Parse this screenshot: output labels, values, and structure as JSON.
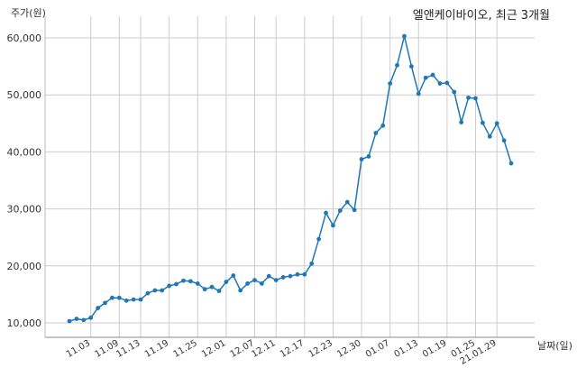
{
  "chart_data": {
    "type": "line",
    "title": "엘앤케이바이오, 최근 3개월",
    "ylabel": "주가(원)",
    "xlabel": "날짜(일)",
    "ylim": [
      10000,
      62000
    ],
    "yticks": [
      10000,
      20000,
      30000,
      40000,
      50000,
      60000
    ],
    "ytick_labels": [
      "10,000",
      "20,000",
      "30,000",
      "40,000",
      "50,000",
      "60,000"
    ],
    "xtick_labels": [
      "11.03",
      "11.09",
      "11.13",
      "11.19",
      "11.25",
      "12.01",
      "12.07",
      "12.11",
      "12.17",
      "12.23",
      "12.30",
      "01.07",
      "01.13",
      "01.19",
      "01.25",
      "21.01.29"
    ],
    "xtick_index": [
      3,
      7,
      10,
      14,
      18,
      22,
      26,
      29,
      33,
      37,
      41,
      45,
      49,
      53,
      57,
      60
    ],
    "grid": true,
    "line_color": "#1f77b4",
    "series": [
      {
        "values": [
          10300,
          10700,
          10500,
          10900,
          12600,
          13500,
          14400,
          14400,
          13900,
          14100,
          14100,
          15200,
          15700,
          15700,
          16500,
          16800,
          17400,
          17300,
          16900,
          15900,
          16300,
          15600,
          17200,
          18300,
          15700,
          16900,
          17500,
          16900,
          18200,
          17500,
          18000,
          18200,
          18500,
          18500,
          20400,
          24700,
          29300,
          27100,
          29700,
          31200,
          29800,
          38700,
          39200,
          43300,
          44600,
          52000,
          55200,
          60300,
          55000,
          50200,
          53000,
          53500,
          52000,
          52100,
          50500,
          45200,
          49500,
          49400,
          45100,
          42700,
          45000,
          42000,
          38000
        ]
      }
    ]
  }
}
